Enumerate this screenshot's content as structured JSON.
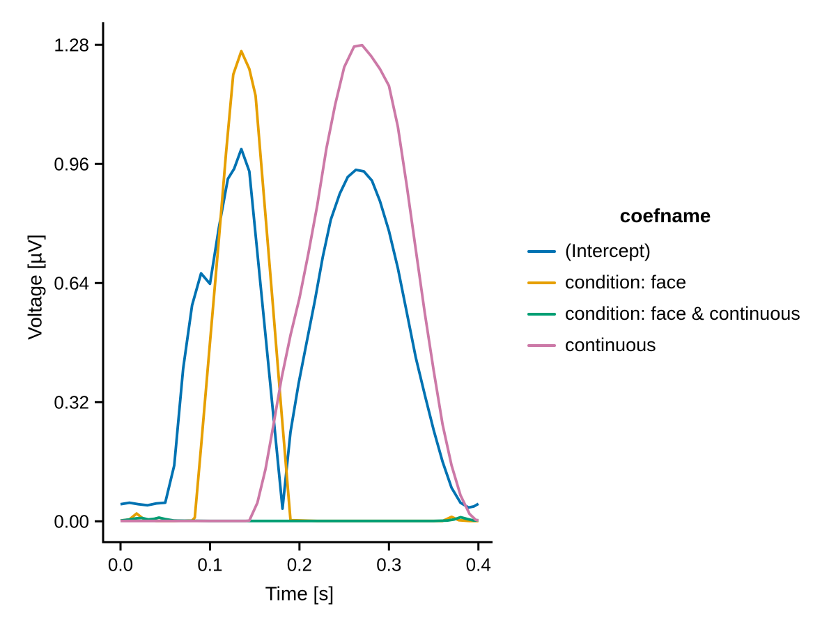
{
  "figure": {
    "background": "#ffffff",
    "text_color": "#000000"
  },
  "axes": {
    "xlabel": "Time [s]",
    "ylabel": "Voltage [µV]",
    "x_tick_labels": [
      "0.0",
      "0.1",
      "0.2",
      "0.3",
      "0.4"
    ],
    "x_tick_values": [
      0.0,
      0.1,
      0.2,
      0.3,
      0.4
    ],
    "y_tick_labels": [
      "0.00",
      "0.32",
      "0.64",
      "0.96",
      "1.28"
    ],
    "y_tick_values": [
      0.0,
      0.32,
      0.64,
      0.96,
      1.28
    ]
  },
  "legend": {
    "title": "coefname",
    "items": [
      {
        "label": "(Intercept)",
        "color": "#0072B2"
      },
      {
        "label": "condition: face",
        "color": "#E69F00"
      },
      {
        "label": "condition: face & continuous",
        "color": "#009E73"
      },
      {
        "label": "continuous",
        "color": "#CC79A7"
      }
    ]
  },
  "chart_data": {
    "type": "line",
    "title": "",
    "xlabel": "Time [s]",
    "ylabel": "Voltage [µV]",
    "xlim": [
      0.0,
      0.4
    ],
    "ylim": [
      0.0,
      1.28
    ],
    "grid": false,
    "legend_position": "right",
    "legend_title": "coefname",
    "series": [
      {
        "name": "(Intercept)",
        "color": "#0072B2",
        "points": [
          [
            0.0,
            0.046
          ],
          [
            0.01,
            0.05
          ],
          [
            0.02,
            0.046
          ],
          [
            0.03,
            0.043
          ],
          [
            0.04,
            0.048
          ],
          [
            0.05,
            0.05
          ],
          [
            0.06,
            0.15
          ],
          [
            0.07,
            0.41
          ],
          [
            0.08,
            0.58
          ],
          [
            0.09,
            0.666
          ],
          [
            0.1,
            0.638
          ],
          [
            0.11,
            0.79
          ],
          [
            0.12,
            0.92
          ],
          [
            0.127,
            0.947
          ],
          [
            0.135,
            1.0
          ],
          [
            0.144,
            0.94
          ],
          [
            0.153,
            0.72
          ],
          [
            0.162,
            0.5
          ],
          [
            0.171,
            0.28
          ],
          [
            0.181,
            0.034
          ],
          [
            0.19,
            0.24
          ],
          [
            0.199,
            0.37
          ],
          [
            0.208,
            0.48
          ],
          [
            0.217,
            0.59
          ],
          [
            0.226,
            0.71
          ],
          [
            0.235,
            0.81
          ],
          [
            0.245,
            0.88
          ],
          [
            0.254,
            0.925
          ],
          [
            0.263,
            0.944
          ],
          [
            0.272,
            0.94
          ],
          [
            0.281,
            0.915
          ],
          [
            0.29,
            0.86
          ],
          [
            0.3,
            0.78
          ],
          [
            0.31,
            0.68
          ],
          [
            0.32,
            0.56
          ],
          [
            0.33,
            0.44
          ],
          [
            0.34,
            0.34
          ],
          [
            0.35,
            0.245
          ],
          [
            0.36,
            0.16
          ],
          [
            0.37,
            0.09
          ],
          [
            0.38,
            0.05
          ],
          [
            0.389,
            0.037
          ],
          [
            0.395,
            0.04
          ],
          [
            0.4,
            0.047
          ]
        ]
      },
      {
        "name": "condition: face",
        "color": "#E69F00",
        "points": [
          [
            0.0,
            0.002
          ],
          [
            0.01,
            0.005
          ],
          [
            0.018,
            0.021
          ],
          [
            0.027,
            0.004
          ],
          [
            0.04,
            0.001
          ],
          [
            0.06,
            0.001
          ],
          [
            0.08,
            0.002
          ],
          [
            0.083,
            0.01
          ],
          [
            0.09,
            0.2
          ],
          [
            0.1,
            0.48
          ],
          [
            0.11,
            0.76
          ],
          [
            0.118,
            0.99
          ],
          [
            0.126,
            1.2
          ],
          [
            0.135,
            1.263
          ],
          [
            0.144,
            1.215
          ],
          [
            0.151,
            1.143
          ],
          [
            0.16,
            0.88
          ],
          [
            0.17,
            0.59
          ],
          [
            0.18,
            0.29
          ],
          [
            0.19,
            0.003
          ],
          [
            0.22,
            0.001
          ],
          [
            0.3,
            0.001
          ],
          [
            0.36,
            0.001
          ],
          [
            0.37,
            0.012
          ],
          [
            0.378,
            0.003
          ],
          [
            0.39,
            0.001
          ],
          [
            0.4,
            0.001
          ]
        ]
      },
      {
        "name": "condition: face & continuous",
        "color": "#009E73",
        "points": [
          [
            0.0,
            0.002
          ],
          [
            0.01,
            0.005
          ],
          [
            0.018,
            0.008
          ],
          [
            0.024,
            0.009
          ],
          [
            0.031,
            0.005
          ],
          [
            0.038,
            0.007
          ],
          [
            0.043,
            0.01
          ],
          [
            0.05,
            0.006
          ],
          [
            0.06,
            0.002
          ],
          [
            0.1,
            0.001
          ],
          [
            0.2,
            0.001
          ],
          [
            0.3,
            0.001
          ],
          [
            0.35,
            0.001
          ],
          [
            0.365,
            0.002
          ],
          [
            0.373,
            0.005
          ],
          [
            0.38,
            0.011
          ],
          [
            0.388,
            0.006
          ],
          [
            0.395,
            0.002
          ],
          [
            0.4,
            0.003
          ]
        ]
      },
      {
        "name": "continuous",
        "color": "#CC79A7",
        "points": [
          [
            0.0,
            0.001
          ],
          [
            0.1,
            0.001
          ],
          [
            0.14,
            0.001
          ],
          [
            0.144,
            0.002
          ],
          [
            0.153,
            0.05
          ],
          [
            0.162,
            0.14
          ],
          [
            0.171,
            0.26
          ],
          [
            0.18,
            0.385
          ],
          [
            0.19,
            0.5
          ],
          [
            0.2,
            0.6
          ],
          [
            0.21,
            0.72
          ],
          [
            0.22,
            0.85
          ],
          [
            0.23,
            1.0
          ],
          [
            0.24,
            1.12
          ],
          [
            0.25,
            1.22
          ],
          [
            0.261,
            1.275
          ],
          [
            0.27,
            1.279
          ],
          [
            0.28,
            1.25
          ],
          [
            0.29,
            1.215
          ],
          [
            0.3,
            1.17
          ],
          [
            0.31,
            1.06
          ],
          [
            0.32,
            0.9
          ],
          [
            0.33,
            0.73
          ],
          [
            0.34,
            0.56
          ],
          [
            0.35,
            0.405
          ],
          [
            0.36,
            0.26
          ],
          [
            0.37,
            0.15
          ],
          [
            0.38,
            0.07
          ],
          [
            0.39,
            0.02
          ],
          [
            0.397,
            0.004
          ],
          [
            0.4,
            0.002
          ]
        ]
      }
    ]
  }
}
